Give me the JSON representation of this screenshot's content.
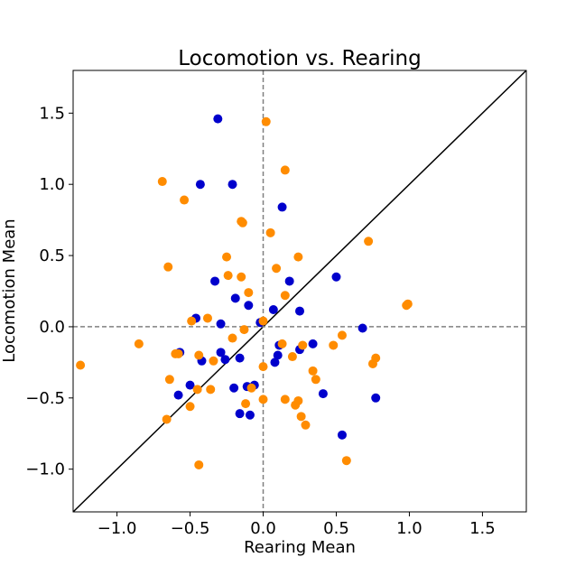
{
  "chart_data": {
    "type": "scatter",
    "title": "Locomotion vs. Rearing",
    "xlabel": "Rearing Mean",
    "ylabel": "Locomotion Mean",
    "xlim": [
      -1.3,
      1.8
    ],
    "ylim": [
      -1.3,
      1.8
    ],
    "xticks": [
      -1.0,
      -0.5,
      0.0,
      0.5,
      1.0,
      1.5
    ],
    "yticks": [
      -1.0,
      -0.5,
      0.0,
      0.5,
      1.0,
      1.5
    ],
    "xtick_labels": [
      "−1.0",
      "−0.5",
      "0.0",
      "0.5",
      "1.0",
      "1.5"
    ],
    "ytick_labels": [
      "−1.0",
      "−0.5",
      "0.0",
      "0.5",
      "1.0",
      "1.5"
    ],
    "reference_lines": {
      "x_zero": true,
      "y_zero": true,
      "identity": true
    },
    "grid": false,
    "series": [
      {
        "color": "#0000cc",
        "points": [
          [
            -0.31,
            1.46
          ],
          [
            -0.43,
            1.0
          ],
          [
            -0.21,
            1.0
          ],
          [
            0.13,
            0.84
          ],
          [
            -0.33,
            0.32
          ],
          [
            0.18,
            0.32
          ],
          [
            0.5,
            0.35
          ],
          [
            -0.19,
            0.2
          ],
          [
            -0.1,
            0.15
          ],
          [
            0.25,
            0.11
          ],
          [
            0.07,
            0.12
          ],
          [
            -0.46,
            0.06
          ],
          [
            -0.29,
            0.02
          ],
          [
            -0.02,
            0.03
          ],
          [
            0.68,
            -0.01
          ],
          [
            -0.57,
            -0.18
          ],
          [
            -0.29,
            -0.18
          ],
          [
            -0.26,
            -0.23
          ],
          [
            -0.16,
            -0.22
          ],
          [
            -0.42,
            -0.24
          ],
          [
            0.1,
            -0.2
          ],
          [
            0.08,
            -0.25
          ],
          [
            0.11,
            -0.13
          ],
          [
            0.25,
            -0.16
          ],
          [
            0.34,
            -0.12
          ],
          [
            -0.5,
            -0.41
          ],
          [
            -0.58,
            -0.48
          ],
          [
            -0.2,
            -0.43
          ],
          [
            -0.11,
            -0.42
          ],
          [
            -0.06,
            -0.41
          ],
          [
            -0.16,
            -0.61
          ],
          [
            -0.09,
            -0.62
          ],
          [
            0.41,
            -0.47
          ],
          [
            0.77,
            -0.5
          ],
          [
            0.54,
            -0.76
          ]
        ]
      },
      {
        "color": "#ff8c00",
        "points": [
          [
            -0.69,
            1.02
          ],
          [
            -0.54,
            0.89
          ],
          [
            0.02,
            1.44
          ],
          [
            0.15,
            1.1
          ],
          [
            -0.15,
            0.74
          ],
          [
            -0.14,
            0.73
          ],
          [
            0.05,
            0.66
          ],
          [
            0.72,
            0.6
          ],
          [
            -0.25,
            0.49
          ],
          [
            0.24,
            0.49
          ],
          [
            -0.65,
            0.42
          ],
          [
            0.09,
            0.41
          ],
          [
            -0.24,
            0.36
          ],
          [
            -0.15,
            0.35
          ],
          [
            -0.1,
            0.24
          ],
          [
            0.15,
            0.22
          ],
          [
            -0.38,
            0.06
          ],
          [
            -0.49,
            0.04
          ],
          [
            0.0,
            0.04
          ],
          [
            -0.13,
            -0.02
          ],
          [
            -0.21,
            -0.08
          ],
          [
            0.54,
            -0.06
          ],
          [
            -0.85,
            -0.12
          ],
          [
            0.13,
            -0.12
          ],
          [
            0.48,
            -0.13
          ],
          [
            -0.6,
            -0.19
          ],
          [
            -0.44,
            -0.2
          ],
          [
            0.2,
            -0.21
          ],
          [
            0.77,
            -0.22
          ],
          [
            -0.34,
            -0.24
          ],
          [
            -1.25,
            -0.27
          ],
          [
            0.75,
            -0.26
          ],
          [
            0.0,
            -0.28
          ],
          [
            0.34,
            -0.31
          ],
          [
            0.36,
            -0.37
          ],
          [
            -0.64,
            -0.37
          ],
          [
            -0.36,
            -0.44
          ],
          [
            -0.45,
            -0.44
          ],
          [
            -0.08,
            -0.43
          ],
          [
            0.0,
            -0.51
          ],
          [
            0.15,
            -0.51
          ],
          [
            0.24,
            -0.52
          ],
          [
            -0.5,
            -0.56
          ],
          [
            -0.12,
            -0.54
          ],
          [
            0.22,
            -0.55
          ],
          [
            0.26,
            -0.63
          ],
          [
            -0.66,
            -0.65
          ],
          [
            0.29,
            -0.69
          ],
          [
            0.57,
            -0.94
          ],
          [
            -0.44,
            -0.97
          ],
          [
            0.98,
            0.15
          ],
          [
            0.99,
            0.16
          ],
          [
            0.27,
            -0.13
          ],
          [
            -0.58,
            -0.19
          ]
        ]
      }
    ]
  }
}
